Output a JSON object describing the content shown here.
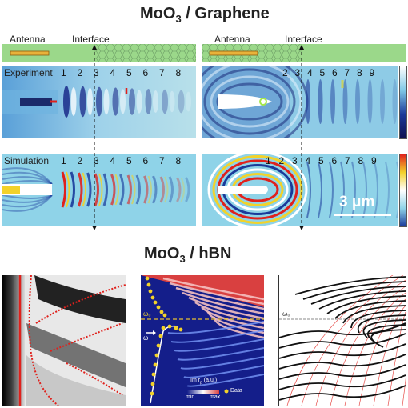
{
  "titles": {
    "top_main": "MoO",
    "top_sub": "3",
    "top_rest": " / Graphene",
    "bottom_main": "MoO",
    "bottom_sub": "3",
    "bottom_rest": " / hBN"
  },
  "schematic": {
    "antenna_label": "Antenna",
    "interface_label": "Interface"
  },
  "rows": {
    "experiment": "Experiment",
    "simulation": "Simulation"
  },
  "fringes_left_exp": [
    "1",
    "2",
    "3",
    "4",
    "5",
    "6",
    "7",
    "8"
  ],
  "fringes_left_sim": [
    "1",
    "2",
    "3",
    "4",
    "5",
    "6",
    "7",
    "8"
  ],
  "fringes_right_exp": [
    "2",
    "3",
    "4",
    "5",
    "6",
    "7",
    "8",
    "9"
  ],
  "fringes_right_sim": [
    "1",
    "2",
    "3",
    "4",
    "5",
    "6",
    "7",
    "8",
    "9"
  ],
  "scale_bar": "3 μm",
  "bottom_middle": {
    "omega0": "ω₀",
    "omega_ar": "ω",
    "legend_title": "Im r",
    "legend_sub": "p",
    "legend_units": " (a.u.)",
    "legend_min": "min",
    "legend_max": "max",
    "data_label": "Data"
  },
  "bottom_right": {
    "omega0": "ω₀"
  },
  "colors": {
    "green_strip": "#9bd88a",
    "antenna_gold": "#e8b23a",
    "map_bg": "#8fd3e8",
    "red_curve": "#e0211c",
    "dark_blue": "#111a8a",
    "data_yellow": "#f2d22a"
  }
}
